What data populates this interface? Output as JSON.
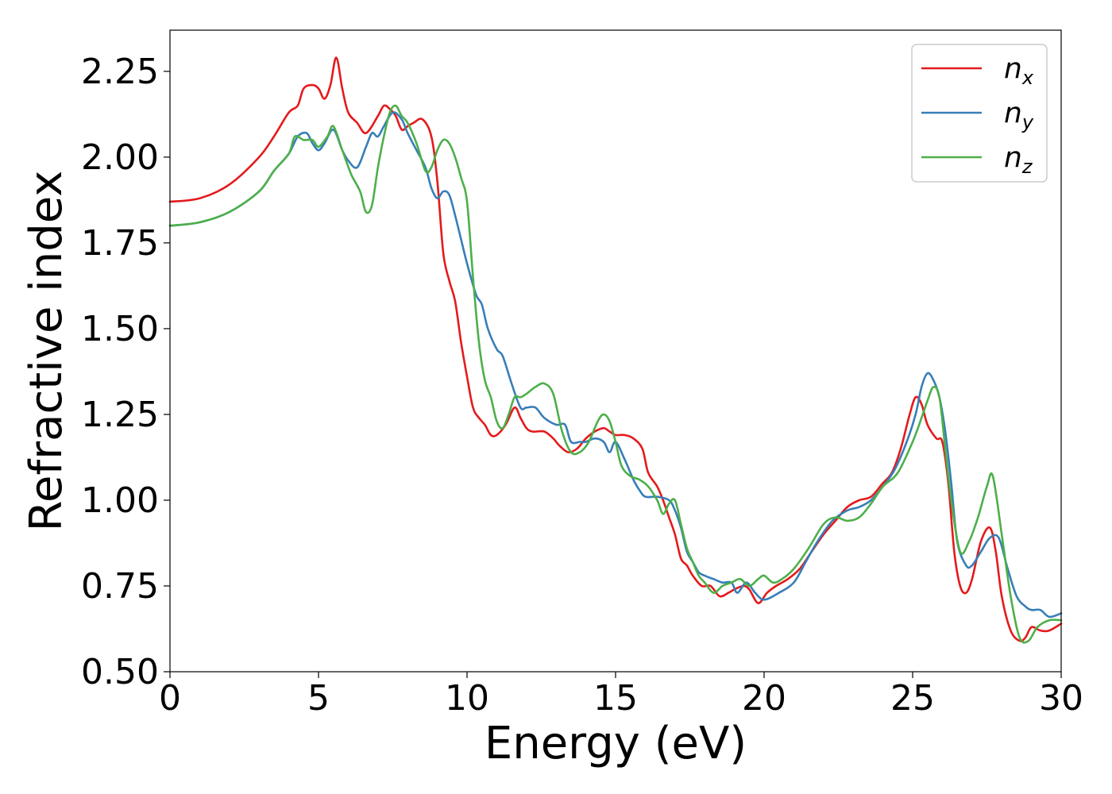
{
  "chart_data": {
    "type": "line",
    "xlabel": "Energy (eV)",
    "ylabel": "Refractive index",
    "xlim": [
      0,
      30
    ],
    "ylim": [
      0.5,
      2.37
    ],
    "xticks": [
      0,
      5,
      10,
      15,
      20,
      25,
      30
    ],
    "xtick_labels": [
      "0",
      "5",
      "10",
      "15",
      "20",
      "25",
      "30"
    ],
    "yticks": [
      0.5,
      0.75,
      1.0,
      1.25,
      1.5,
      1.75,
      2.0,
      2.25
    ],
    "ytick_labels": [
      "0.50",
      "0.75",
      "1.00",
      "1.25",
      "1.50",
      "1.75",
      "2.00",
      "2.25"
    ],
    "grid": false,
    "legend_position": "top-right",
    "series": [
      {
        "name": "n",
        "subscript": "x",
        "color": "#e41a1c",
        "x": [
          0,
          1,
          2,
          3,
          3.5,
          4,
          4.3,
          4.5,
          4.8,
          5.0,
          5.2,
          5.4,
          5.6,
          5.8,
          6.0,
          6.3,
          6.6,
          7.0,
          7.2,
          7.4,
          7.6,
          7.8,
          8.0,
          8.2,
          8.5,
          8.8,
          9.0,
          9.2,
          9.4,
          9.6,
          9.8,
          10.0,
          10.2,
          10.4,
          10.6,
          10.8,
          11.0,
          11.3,
          11.6,
          11.8,
          12.0,
          12.2,
          12.6,
          12.9,
          13.1,
          13.4,
          13.7,
          14.0,
          14.3,
          14.6,
          14.8,
          15.0,
          15.3,
          15.6,
          15.9,
          16.1,
          16.4,
          16.6,
          16.8,
          17.0,
          17.2,
          17.4,
          17.6,
          17.9,
          18.2,
          18.5,
          18.8,
          19.0,
          19.3,
          19.5,
          19.8,
          20.1,
          20.4,
          20.8,
          21.2,
          21.6,
          22.0,
          22.4,
          22.8,
          23.2,
          23.6,
          24.0,
          24.3,
          24.6,
          24.9,
          25.1,
          25.3,
          25.5,
          25.8,
          26.0,
          26.2,
          26.4,
          26.6,
          26.8,
          27.0,
          27.3,
          27.6,
          27.8,
          28.0,
          28.3,
          28.6,
          28.8,
          29.0,
          29.3,
          29.6,
          30.0
        ],
        "y": [
          1.87,
          1.88,
          1.92,
          2.0,
          2.06,
          2.13,
          2.15,
          2.2,
          2.21,
          2.2,
          2.17,
          2.21,
          2.29,
          2.2,
          2.13,
          2.1,
          2.07,
          2.12,
          2.15,
          2.14,
          2.12,
          2.08,
          2.09,
          2.1,
          2.11,
          2.06,
          1.93,
          1.72,
          1.64,
          1.58,
          1.46,
          1.36,
          1.27,
          1.24,
          1.22,
          1.19,
          1.19,
          1.22,
          1.27,
          1.24,
          1.21,
          1.2,
          1.2,
          1.18,
          1.16,
          1.14,
          1.15,
          1.18,
          1.2,
          1.21,
          1.2,
          1.19,
          1.19,
          1.18,
          1.15,
          1.08,
          1.04,
          1.0,
          0.95,
          0.9,
          0.83,
          0.81,
          0.78,
          0.75,
          0.75,
          0.72,
          0.73,
          0.74,
          0.75,
          0.74,
          0.7,
          0.73,
          0.75,
          0.77,
          0.8,
          0.85,
          0.9,
          0.94,
          0.98,
          1.0,
          1.01,
          1.05,
          1.08,
          1.15,
          1.25,
          1.3,
          1.28,
          1.22,
          1.18,
          1.17,
          1.05,
          0.85,
          0.75,
          0.73,
          0.77,
          0.88,
          0.92,
          0.85,
          0.72,
          0.62,
          0.59,
          0.6,
          0.63,
          0.62,
          0.62,
          0.64
        ]
      },
      {
        "name": "n",
        "subscript": "y",
        "color": "#377eb8",
        "x": [
          0,
          1,
          2,
          3,
          3.5,
          4,
          4.3,
          4.6,
          4.8,
          5.0,
          5.2,
          5.5,
          5.8,
          6.0,
          6.3,
          6.6,
          6.8,
          7.0,
          7.2,
          7.5,
          7.8,
          8.0,
          8.3,
          8.6,
          8.8,
          9.0,
          9.2,
          9.4,
          9.6,
          9.8,
          10.0,
          10.3,
          10.5,
          10.7,
          11.0,
          11.2,
          11.5,
          11.8,
          12.0,
          12.3,
          12.6,
          13.0,
          13.3,
          13.5,
          13.8,
          14.0,
          14.3,
          14.6,
          14.8,
          15.0,
          15.3,
          15.6,
          15.8,
          16.0,
          16.4,
          16.8,
          17.0,
          17.2,
          17.4,
          17.6,
          17.8,
          18.0,
          18.3,
          18.6,
          18.9,
          19.1,
          19.4,
          19.7,
          20.0,
          20.5,
          21.0,
          21.4,
          21.8,
          22.3,
          22.8,
          23.2,
          23.6,
          24.0,
          24.4,
          24.8,
          25.1,
          25.3,
          25.5,
          25.7,
          25.9,
          26.1,
          26.3,
          26.5,
          26.8,
          27.0,
          27.3,
          27.6,
          27.9,
          28.2,
          28.5,
          28.8,
          29.0,
          29.3,
          29.6,
          30.0
        ],
        "y": [
          1.8,
          1.81,
          1.84,
          1.9,
          1.96,
          2.01,
          2.06,
          2.07,
          2.04,
          2.02,
          2.04,
          2.08,
          2.02,
          1.99,
          1.97,
          2.03,
          2.07,
          2.06,
          2.09,
          2.13,
          2.11,
          2.07,
          2.02,
          1.97,
          1.91,
          1.88,
          1.9,
          1.89,
          1.83,
          1.76,
          1.69,
          1.6,
          1.57,
          1.5,
          1.44,
          1.42,
          1.34,
          1.27,
          1.27,
          1.27,
          1.24,
          1.22,
          1.22,
          1.17,
          1.17,
          1.17,
          1.18,
          1.17,
          1.14,
          1.17,
          1.12,
          1.06,
          1.03,
          1.01,
          1.01,
          1.0,
          0.97,
          0.92,
          0.85,
          0.82,
          0.79,
          0.78,
          0.77,
          0.76,
          0.76,
          0.73,
          0.76,
          0.73,
          0.71,
          0.73,
          0.76,
          0.82,
          0.88,
          0.94,
          0.97,
          0.98,
          1.0,
          1.04,
          1.09,
          1.17,
          1.25,
          1.33,
          1.37,
          1.35,
          1.3,
          1.2,
          1.05,
          0.88,
          0.81,
          0.81,
          0.85,
          0.89,
          0.89,
          0.8,
          0.72,
          0.69,
          0.68,
          0.68,
          0.66,
          0.67
        ]
      },
      {
        "name": "n",
        "subscript": "z",
        "color": "#4daf4a",
        "x": [
          0,
          1,
          2,
          3,
          3.5,
          4,
          4.2,
          4.5,
          4.8,
          5.0,
          5.3,
          5.5,
          5.8,
          6.1,
          6.4,
          6.6,
          6.8,
          7.0,
          7.2,
          7.4,
          7.6,
          7.8,
          8.0,
          8.3,
          8.6,
          8.8,
          9.0,
          9.2,
          9.4,
          9.6,
          9.8,
          10.0,
          10.2,
          10.4,
          10.6,
          10.8,
          11.0,
          11.2,
          11.4,
          11.6,
          11.8,
          12.0,
          12.3,
          12.6,
          12.9,
          13.2,
          13.5,
          13.8,
          14.1,
          14.4,
          14.6,
          14.8,
          15.0,
          15.2,
          15.5,
          15.8,
          16.1,
          16.4,
          16.6,
          16.8,
          17.0,
          17.2,
          17.4,
          17.6,
          17.8,
          18.0,
          18.3,
          18.6,
          18.9,
          19.2,
          19.5,
          19.8,
          20.0,
          20.3,
          20.6,
          21.0,
          21.5,
          22.0,
          22.4,
          22.8,
          23.2,
          23.6,
          24.0,
          24.5,
          25.0,
          25.3,
          25.5,
          25.7,
          25.9,
          26.1,
          26.3,
          26.6,
          26.9,
          27.2,
          27.5,
          27.7,
          28.0,
          28.3,
          28.6,
          28.9,
          29.2,
          29.6,
          30.0
        ],
        "y": [
          1.8,
          1.81,
          1.84,
          1.9,
          1.96,
          2.01,
          2.06,
          2.05,
          2.05,
          2.03,
          2.06,
          2.09,
          2.02,
          1.95,
          1.9,
          1.84,
          1.86,
          1.97,
          2.06,
          2.13,
          2.15,
          2.12,
          2.1,
          2.04,
          1.96,
          1.97,
          2.02,
          2.05,
          2.04,
          2.0,
          1.94,
          1.87,
          1.65,
          1.46,
          1.35,
          1.3,
          1.23,
          1.21,
          1.25,
          1.3,
          1.3,
          1.31,
          1.33,
          1.34,
          1.31,
          1.2,
          1.14,
          1.14,
          1.17,
          1.23,
          1.25,
          1.23,
          1.17,
          1.1,
          1.07,
          1.06,
          1.04,
          1.0,
          0.96,
          0.99,
          1.0,
          0.93,
          0.86,
          0.82,
          0.78,
          0.76,
          0.73,
          0.75,
          0.76,
          0.77,
          0.75,
          0.77,
          0.78,
          0.76,
          0.77,
          0.8,
          0.86,
          0.93,
          0.95,
          0.94,
          0.95,
          0.99,
          1.04,
          1.08,
          1.17,
          1.24,
          1.29,
          1.33,
          1.3,
          1.15,
          1.0,
          0.85,
          0.88,
          0.95,
          1.04,
          1.07,
          0.9,
          0.72,
          0.6,
          0.59,
          0.63,
          0.65,
          0.65
        ]
      }
    ]
  }
}
